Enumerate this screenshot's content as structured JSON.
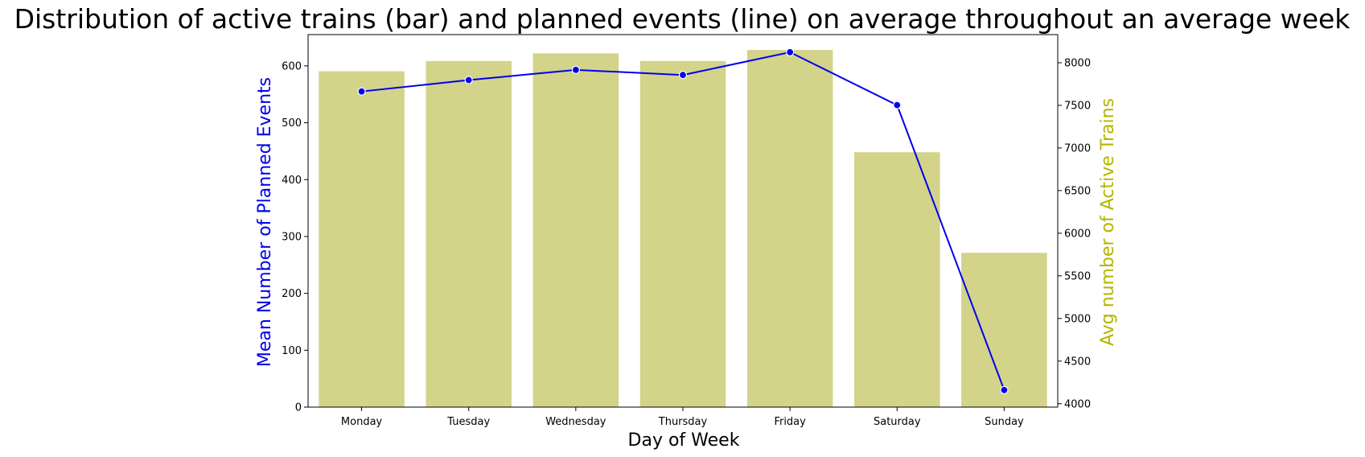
{
  "chart_data": {
    "type": "bar",
    "title": "Distribution of active trains (bar) and planned events (line) on average throughout an average week",
    "xlabel": "Day of Week",
    "ylabel": "Mean Number of Planned Events",
    "y2label": "Avg number of Active Trains",
    "categories": [
      "Monday",
      "Tuesday",
      "Wednesday",
      "Thursday",
      "Friday",
      "Saturday",
      "Sunday"
    ],
    "series": [
      {
        "name": "Avg number of Active Trains",
        "type": "bar",
        "axis": "right",
        "values": [
          7900,
          8020,
          8110,
          8020,
          8150,
          6950,
          5770
        ]
      },
      {
        "name": "Mean Number of Planned Events",
        "type": "line",
        "axis": "left",
        "values": [
          555,
          575,
          593,
          584,
          624,
          531,
          30
        ]
      }
    ],
    "ylim": [
      0,
      655
    ],
    "y2lim": [
      3960,
      8330
    ],
    "yticks": [
      0,
      100,
      200,
      300,
      400,
      500,
      600
    ],
    "y2ticks": [
      4000,
      4500,
      5000,
      5500,
      6000,
      6500,
      7000,
      7500,
      8000
    ],
    "grid": false,
    "colors": {
      "bar": "#d3d38a",
      "line": "#0000ee",
      "marker_edge": "#ffffff",
      "ylabel": "#0000ee",
      "y2label": "#b5b500",
      "axis": "#000000"
    }
  }
}
